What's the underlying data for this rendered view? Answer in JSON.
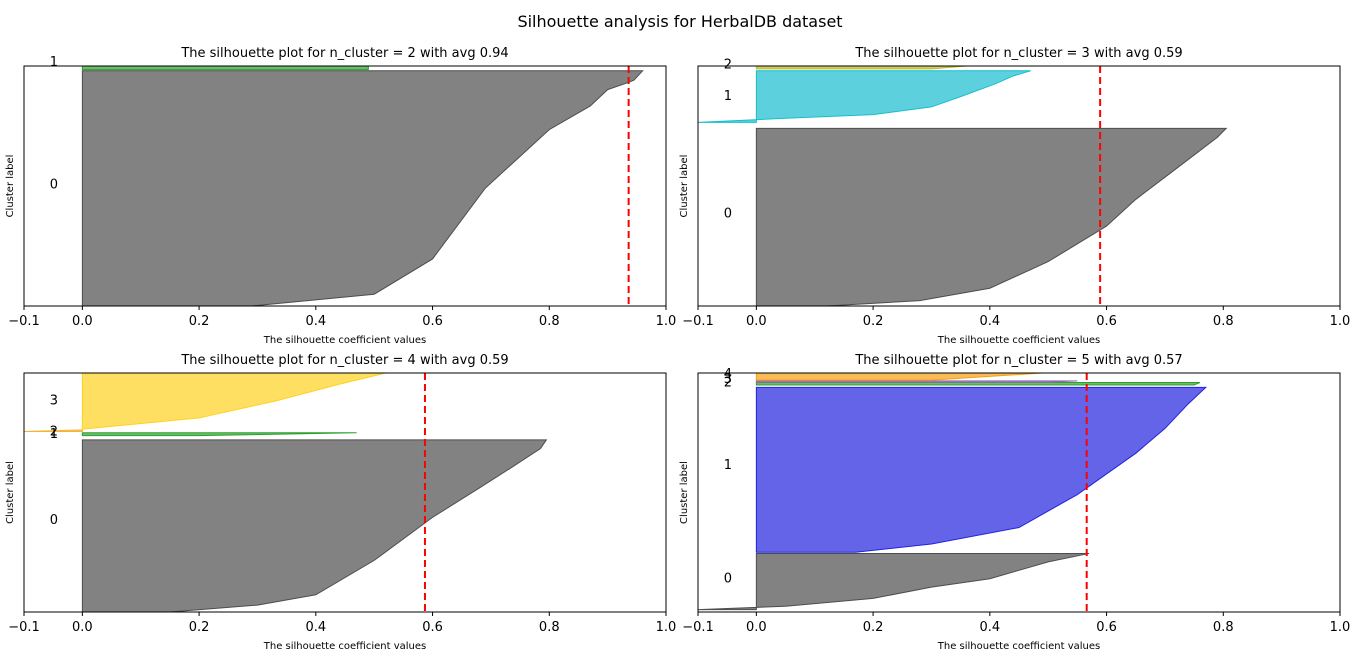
{
  "suptitle": "Silhouette analysis for HerbalDB dataset",
  "chart_data": [
    {
      "type": "area",
      "title": "The silhouette plot for n_cluster = 2 with avg 0.94",
      "xlabel": "The silhouette coefficient values",
      "ylabel": "Cluster label",
      "xlim": [
        -0.1,
        1.0
      ],
      "xticks": [
        "−0.1",
        "0.0",
        "0.2",
        "0.4",
        "0.6",
        "0.8",
        "1.0"
      ],
      "avg": 0.936,
      "clusters": [
        {
          "label": "0",
          "color": "#4d4d4d",
          "shape": [
            [
              0,
              0.29
            ],
            [
              0.05,
              0.5
            ],
            [
              0.2,
              0.6
            ],
            [
              0.5,
              0.69
            ],
            [
              0.75,
              0.8
            ],
            [
              0.85,
              0.87
            ],
            [
              0.92,
              0.9
            ],
            [
              0.95,
              0.935
            ],
            [
              0.96,
              0.945
            ],
            [
              1,
              0.96
            ]
          ]
        },
        {
          "label": "1",
          "color": "#2ca02c",
          "shape": [
            [
              0,
              0.49
            ],
            [
              1,
              0.49
            ]
          ]
        }
      ]
    },
    {
      "type": "area",
      "title": "The silhouette plot for n_cluster = 3 with avg 0.59",
      "xlabel": "The silhouette coefficient values",
      "ylabel": "Cluster label",
      "xlim": [
        -0.1,
        1.0
      ],
      "xticks": [
        "−0.1",
        "0.0",
        "0.2",
        "0.4",
        "0.6",
        "0.8",
        "1.0"
      ],
      "avg": 0.589,
      "clusters": [
        {
          "label": "0",
          "color": "#4d4d4d",
          "shape": [
            [
              0,
              0.12
            ],
            [
              0.03,
              0.28
            ],
            [
              0.1,
              0.4
            ],
            [
              0.25,
              0.5
            ],
            [
              0.45,
              0.6
            ],
            [
              0.6,
              0.65
            ],
            [
              0.75,
              0.71
            ],
            [
              0.85,
              0.75
            ],
            [
              0.95,
              0.79
            ],
            [
              1,
              0.805
            ]
          ]
        },
        {
          "label": "1",
          "color": "#17becf",
          "shape": [
            [
              0,
              -0.1
            ],
            [
              0.08,
              0.05
            ],
            [
              0.15,
              0.2
            ],
            [
              0.3,
              0.3
            ],
            [
              0.5,
              0.35
            ],
            [
              0.75,
              0.41
            ],
            [
              0.9,
              0.44
            ],
            [
              1,
              0.47
            ]
          ]
        },
        {
          "label": "2",
          "color": "#bcbd22",
          "shape": [
            [
              0,
              0.3
            ],
            [
              1,
              0.36
            ]
          ]
        }
      ]
    },
    {
      "type": "area",
      "title": "The silhouette plot for n_cluster = 4 with avg 0.59",
      "xlabel": "The silhouette coefficient values",
      "ylabel": "Cluster label",
      "xlim": [
        -0.1,
        1.0
      ],
      "xticks": [
        "−0.1",
        "0.0",
        "0.2",
        "0.4",
        "0.6",
        "0.8",
        "1.0"
      ],
      "avg": 0.587,
      "clusters": [
        {
          "label": "0",
          "color": "#4d4d4d",
          "shape": [
            [
              0,
              0.15
            ],
            [
              0.04,
              0.3
            ],
            [
              0.1,
              0.4
            ],
            [
              0.3,
              0.5
            ],
            [
              0.55,
              0.6
            ],
            [
              0.72,
              0.68
            ],
            [
              0.85,
              0.74
            ],
            [
              0.95,
              0.785
            ],
            [
              1,
              0.795
            ]
          ]
        },
        {
          "label": "1",
          "color": "#2ca02c",
          "shape": [
            [
              0,
              0.2
            ],
            [
              1,
              0.47
            ]
          ]
        },
        {
          "label": "2",
          "color": "#f2b632",
          "shape": [
            [
              0,
              -0.1
            ],
            [
              1,
              0.0
            ]
          ]
        },
        {
          "label": "3",
          "color": "#ffd21e",
          "shape": [
            [
              0,
              0.0
            ],
            [
              0.2,
              0.2
            ],
            [
              0.5,
              0.33
            ],
            [
              0.8,
              0.44
            ],
            [
              1,
              0.52
            ]
          ]
        }
      ]
    },
    {
      "type": "area",
      "title": "The silhouette plot for n_cluster = 5 with avg 0.57",
      "xlabel": "The silhouette coefficient values",
      "ylabel": "Cluster label",
      "xlim": [
        -0.1,
        1.0
      ],
      "xticks": [
        "−0.1",
        "0.0",
        "0.2",
        "0.4",
        "0.6",
        "0.8",
        "1.0"
      ],
      "avg": 0.566,
      "clusters": [
        {
          "label": "0",
          "color": "#4d4d4d",
          "shape": [
            [
              0,
              -0.1
            ],
            [
              0.06,
              0.05
            ],
            [
              0.2,
              0.2
            ],
            [
              0.4,
              0.3
            ],
            [
              0.55,
              0.4
            ],
            [
              0.7,
              0.45
            ],
            [
              0.85,
              0.5
            ],
            [
              1,
              0.57
            ]
          ]
        },
        {
          "label": "1",
          "color": "#2222e0",
          "shape": [
            [
              0,
              0.17
            ],
            [
              0.05,
              0.3
            ],
            [
              0.15,
              0.45
            ],
            [
              0.35,
              0.55
            ],
            [
              0.6,
              0.65
            ],
            [
              0.75,
              0.7
            ],
            [
              0.9,
              0.74
            ],
            [
              1,
              0.77
            ]
          ]
        },
        {
          "label": "2",
          "color": "#2ca02c",
          "shape": [
            [
              0,
              0.75
            ],
            [
              1,
              0.76
            ]
          ]
        },
        {
          "label": "3",
          "color": "#9467bd",
          "shape": [
            [
              0,
              0.5
            ],
            [
              1,
              0.55
            ]
          ]
        },
        {
          "label": "4",
          "color": "#f7a010",
          "shape": [
            [
              0,
              0.3
            ],
            [
              1,
              0.49
            ]
          ]
        }
      ]
    }
  ]
}
